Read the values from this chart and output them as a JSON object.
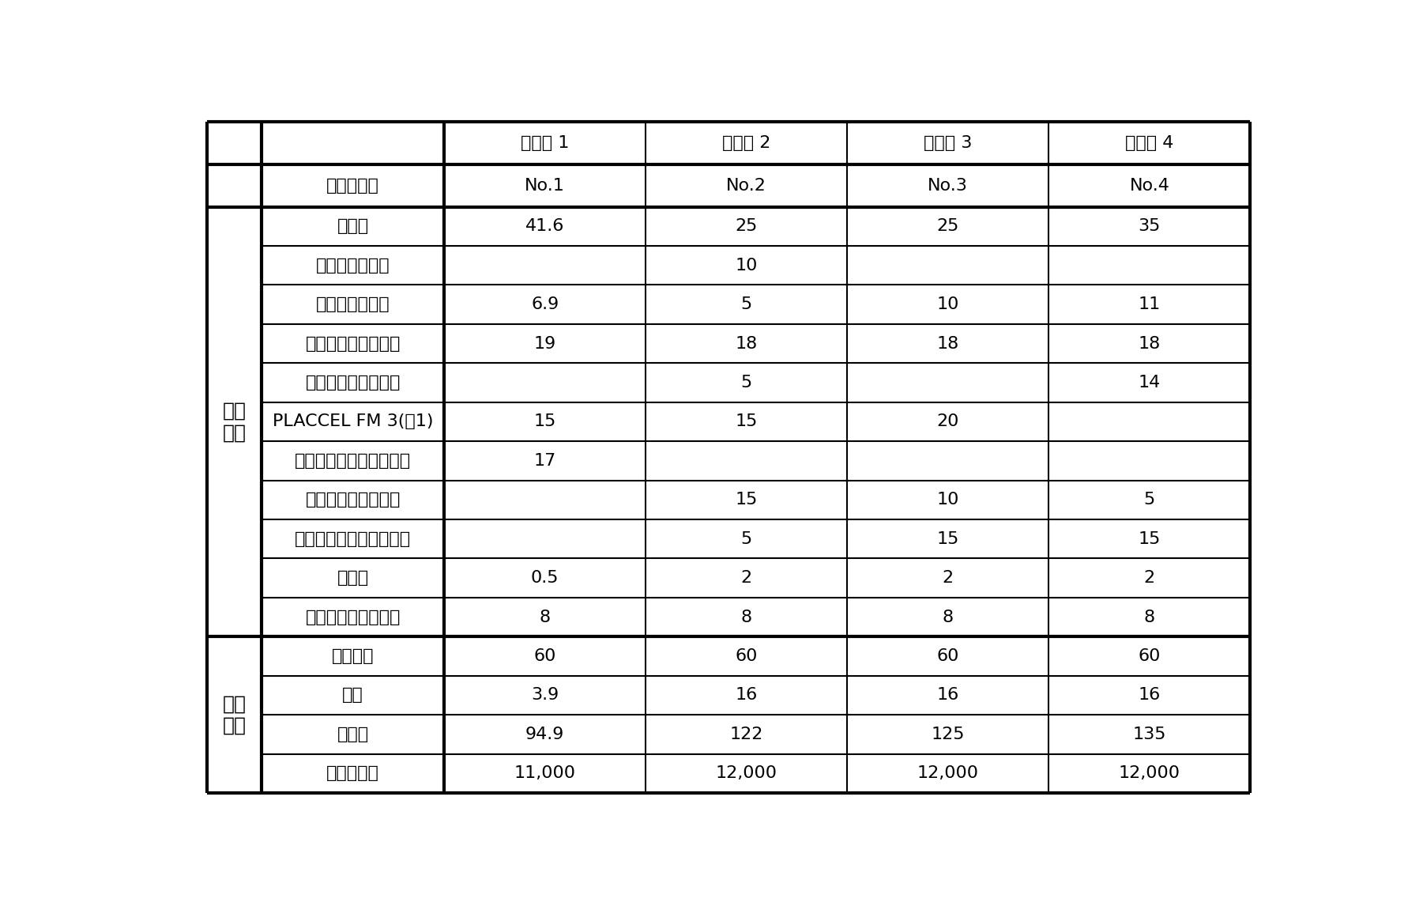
{
  "col_headers": [
    "制备例 1",
    "制备例 2",
    "制备例 3",
    "制备例 4"
  ],
  "rows": [
    {
      "label": "丙烯酸树脂",
      "values": [
        "No.1",
        "No.2",
        "No.3",
        "No.4"
      ],
      "group": "header"
    },
    {
      "label": "苯乙烯",
      "values": [
        "41.6",
        "25",
        "25",
        "35"
      ],
      "group": "peibi"
    },
    {
      "label": "甲基丙烯酸甲酯",
      "values": [
        "",
        "10",
        "",
        ""
      ],
      "group": "peibi"
    },
    {
      "label": "丙烯酸正丁基酯",
      "values": [
        "6.9",
        "5",
        "10",
        "11"
      ],
      "group": "peibi"
    },
    {
      "label": "甲基丙烯酸异丁基酯",
      "values": [
        "19",
        "18",
        "18",
        "18"
      ],
      "group": "peibi"
    },
    {
      "label": "丙烯酸４－羟基丁酯",
      "values": [
        "",
        "5",
        "",
        "14"
      ],
      "group": "peibi"
    },
    {
      "label": "PLACCEL FM 3(注1)",
      "values": [
        "15",
        "15",
        "20",
        ""
      ],
      "group": "peibi"
    },
    {
      "label": "甲基丙烯酸２－羟基乙酯",
      "values": [
        "17",
        "",
        "",
        ""
      ],
      "group": "peibi"
    },
    {
      "label": "丙烯酸２－羟基丙酯",
      "values": [
        "",
        "15",
        "10",
        "5"
      ],
      "group": "peibi"
    },
    {
      "label": "甲基丙烯酸２－羟基丙酯",
      "values": [
        "",
        "5",
        "15",
        "15"
      ],
      "group": "peibi"
    },
    {
      "label": "丙烯酸",
      "values": [
        "0.5",
        "2",
        "2",
        "2"
      ],
      "group": "peibi"
    },
    {
      "label": "二叔丁基氢过氧化物",
      "values": [
        "8",
        "8",
        "8",
        "8"
      ],
      "group": "peibi"
    },
    {
      "label": "固体成分",
      "values": [
        "60",
        "60",
        "60",
        "60"
      ],
      "group": "shuzhi"
    },
    {
      "label": "酸值",
      "values": [
        "3.9",
        "16",
        "16",
        "16"
      ],
      "group": "shuzhi"
    },
    {
      "label": "羟基值",
      "values": [
        "94.9",
        "122",
        "125",
        "135"
      ],
      "group": "shuzhi"
    },
    {
      "label": "重均分子量",
      "values": [
        "11,000",
        "12,000",
        "12,000",
        "12,000"
      ],
      "group": "shuzhi"
    }
  ],
  "group_labels": {
    "header": "",
    "peibi": "配比\n内容",
    "shuzhi": "树脂\n特征"
  },
  "background_color": "#ffffff",
  "text_color": "#000000",
  "thin_lw": 1.5,
  "thick_lw": 3.0,
  "font_size": 16,
  "cat_font_size": 18
}
